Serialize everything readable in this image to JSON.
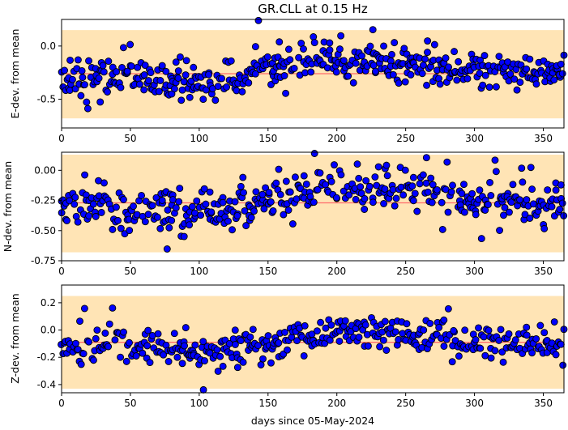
{
  "title": "GR.CLL at 0.15 Hz",
  "xlabel": "days since 05-May-2024",
  "colors": {
    "band": "#ffe4b5",
    "mean_line": "#ff6b6b",
    "marker_fill": "#0000ff",
    "marker_edge": "#000000"
  },
  "chart_data": [
    {
      "type": "scatter",
      "ylabel": "E-dev. from mean",
      "xlim": [
        0,
        365
      ],
      "ylim": [
        -0.77,
        0.25
      ],
      "xticks": [
        "0",
        "50",
        "100",
        "150",
        "200",
        "250",
        "300",
        "350"
      ],
      "xtick_values": [
        0,
        50,
        100,
        150,
        200,
        250,
        300,
        350
      ],
      "yticks": [
        "0.0",
        "-0.5"
      ],
      "ytick_values": [
        0.0,
        -0.5
      ],
      "band": [
        -0.68,
        0.15
      ],
      "mean": -0.26,
      "noise": {
        "base_sd": 0.075,
        "outlier_sd": 0.16,
        "seed": 11
      },
      "trend": [
        [
          0,
          -0.29
        ],
        [
          50,
          -0.33
        ],
        [
          100,
          -0.35
        ],
        [
          130,
          -0.32
        ],
        [
          150,
          -0.2
        ],
        [
          200,
          -0.14
        ],
        [
          250,
          -0.17
        ],
        [
          300,
          -0.23
        ],
        [
          365,
          -0.26
        ]
      ]
    },
    {
      "type": "scatter",
      "ylabel": "N-dev. from mean",
      "xlim": [
        0,
        365
      ],
      "ylim": [
        -0.75,
        0.15
      ],
      "xticks": [
        "0",
        "50",
        "100",
        "150",
        "200",
        "250",
        "300",
        "350"
      ],
      "xtick_values": [
        0,
        50,
        100,
        150,
        200,
        250,
        300,
        350
      ],
      "yticks": [
        "0.00",
        "-0.25",
        "-0.50",
        "-0.75"
      ],
      "ytick_values": [
        0.0,
        -0.25,
        -0.5,
        -0.75
      ],
      "band": [
        -0.68,
        0.13
      ],
      "mean": -0.27,
      "noise": {
        "base_sd": 0.075,
        "outlier_sd": 0.16,
        "seed": 23
      },
      "trend": [
        [
          0,
          -0.3
        ],
        [
          50,
          -0.34
        ],
        [
          100,
          -0.36
        ],
        [
          130,
          -0.34
        ],
        [
          150,
          -0.24
        ],
        [
          200,
          -0.15
        ],
        [
          250,
          -0.16
        ],
        [
          300,
          -0.24
        ],
        [
          365,
          -0.28
        ]
      ]
    },
    {
      "type": "scatter",
      "ylabel": "Z-dev. from mean",
      "xlim": [
        0,
        365
      ],
      "ylim": [
        -0.46,
        0.33
      ],
      "xticks": [
        "0",
        "50",
        "100",
        "150",
        "200",
        "250",
        "300",
        "350"
      ],
      "xtick_values": [
        0,
        50,
        100,
        150,
        200,
        250,
        300,
        350
      ],
      "yticks": [
        "0.2",
        "0.0",
        "-0.2",
        "-0.4"
      ],
      "ytick_values": [
        0.2,
        0.0,
        -0.2,
        -0.4
      ],
      "band": [
        -0.43,
        0.25
      ],
      "mean": -0.09,
      "noise": {
        "base_sd": 0.055,
        "outlier_sd": 0.12,
        "seed": 37
      },
      "trend": [
        [
          0,
          -0.12
        ],
        [
          50,
          -0.13
        ],
        [
          100,
          -0.15
        ],
        [
          140,
          -0.14
        ],
        [
          170,
          -0.06
        ],
        [
          200,
          0.0
        ],
        [
          250,
          -0.03
        ],
        [
          300,
          -0.09
        ],
        [
          365,
          -0.12
        ]
      ]
    }
  ]
}
